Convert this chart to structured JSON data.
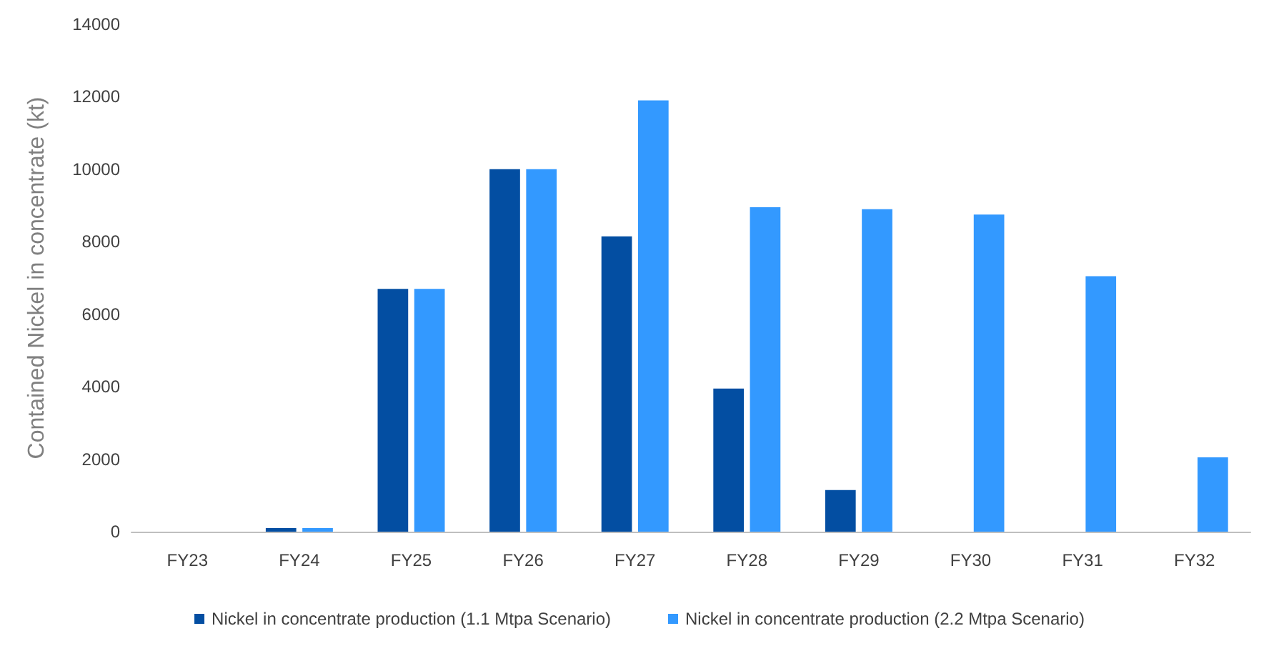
{
  "chart_data": {
    "type": "bar",
    "ylabel": "Contained Nickel in concentrate (kt)",
    "categories": [
      "FY23",
      "FY24",
      "FY25",
      "FY26",
      "FY27",
      "FY28",
      "FY29",
      "FY30",
      "FY31",
      "FY32"
    ],
    "series": [
      {
        "name": "Nickel in concentrate production (1.1 Mtpa Scenario)",
        "color": "#034ea2",
        "values": [
          0,
          100,
          6700,
          10000,
          8150,
          3950,
          1150,
          0,
          0,
          0
        ]
      },
      {
        "name": "Nickel in concentrate production (2.2 Mtpa Scenario)",
        "color": "#3399ff",
        "values": [
          0,
          100,
          6700,
          10000,
          11900,
          8950,
          8900,
          8750,
          7050,
          2050
        ]
      }
    ],
    "ylim": [
      0,
      14000
    ],
    "yticks": [
      0,
      2000,
      4000,
      6000,
      8000,
      10000,
      12000,
      14000
    ],
    "grid": false,
    "legend": "bottom"
  }
}
